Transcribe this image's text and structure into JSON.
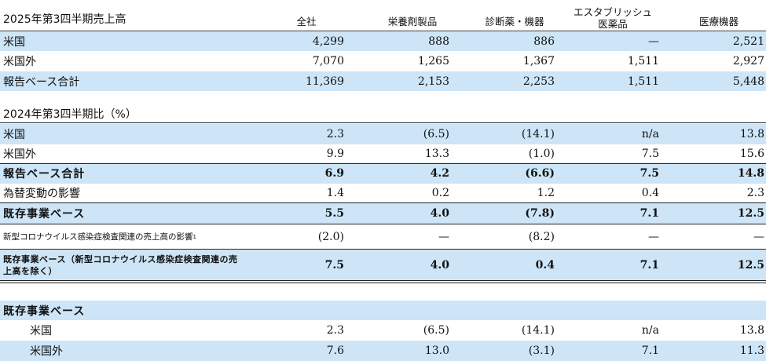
{
  "header": {
    "title": "2025年第3四半期売上高",
    "cols": [
      "全社",
      "栄養剤製品",
      "診断薬・機器",
      "エスタブリッシュ\n医薬品",
      "医療機器"
    ]
  },
  "section1": {
    "rows": [
      {
        "label": "米国",
        "values": [
          "4,299",
          "888",
          "886",
          "—",
          "2,521"
        ]
      },
      {
        "label": "米国外",
        "values": [
          "7,070",
          "1,265",
          "1,367",
          "1,511",
          "2,927"
        ]
      },
      {
        "label": "報告ベース合計",
        "values": [
          "11,369",
          "2,153",
          "2,253",
          "1,511",
          "5,448"
        ]
      }
    ]
  },
  "section2": {
    "title": "2024年第3四半期比（%）",
    "rows": [
      {
        "label": "米国",
        "values": [
          "2.3",
          "(6.5)",
          "(14.1)",
          "n/a",
          "13.8"
        ]
      },
      {
        "label": "米国外",
        "values": [
          "9.9",
          "13.3",
          "(1.0)",
          "7.5",
          "15.6"
        ]
      },
      {
        "label": "報告ベース合計",
        "values": [
          "6.9",
          "4.2",
          "(6.6)",
          "7.5",
          "14.8"
        ]
      },
      {
        "label": "為替変動の影響",
        "values": [
          "1.4",
          "0.2",
          "1.2",
          "0.4",
          "2.3"
        ]
      },
      {
        "label": "既存事業ベース",
        "values": [
          "5.5",
          "4.0",
          "(7.8)",
          "7.1",
          "12.5"
        ]
      },
      {
        "label": "新型コロナウイルス感染症検査関連の売上高の影響",
        "footnote": "1",
        "values": [
          "(2.0)",
          "—",
          "(8.2)",
          "—",
          "—"
        ]
      },
      {
        "label": "既存事業ベース（新型コロナウイルス感染症検査関連の売上高を除く）",
        "values": [
          "7.5",
          "4.0",
          "0.4",
          "7.1",
          "12.5"
        ]
      }
    ]
  },
  "section3": {
    "title": "既存事業ベース",
    "rows": [
      {
        "label": "米国",
        "values": [
          "2.3",
          "(6.5)",
          "(14.1)",
          "n/a",
          "13.8"
        ]
      },
      {
        "label": "米国外",
        "values": [
          "7.6",
          "13.0",
          "(3.1)",
          "7.1",
          "11.3"
        ]
      }
    ]
  }
}
